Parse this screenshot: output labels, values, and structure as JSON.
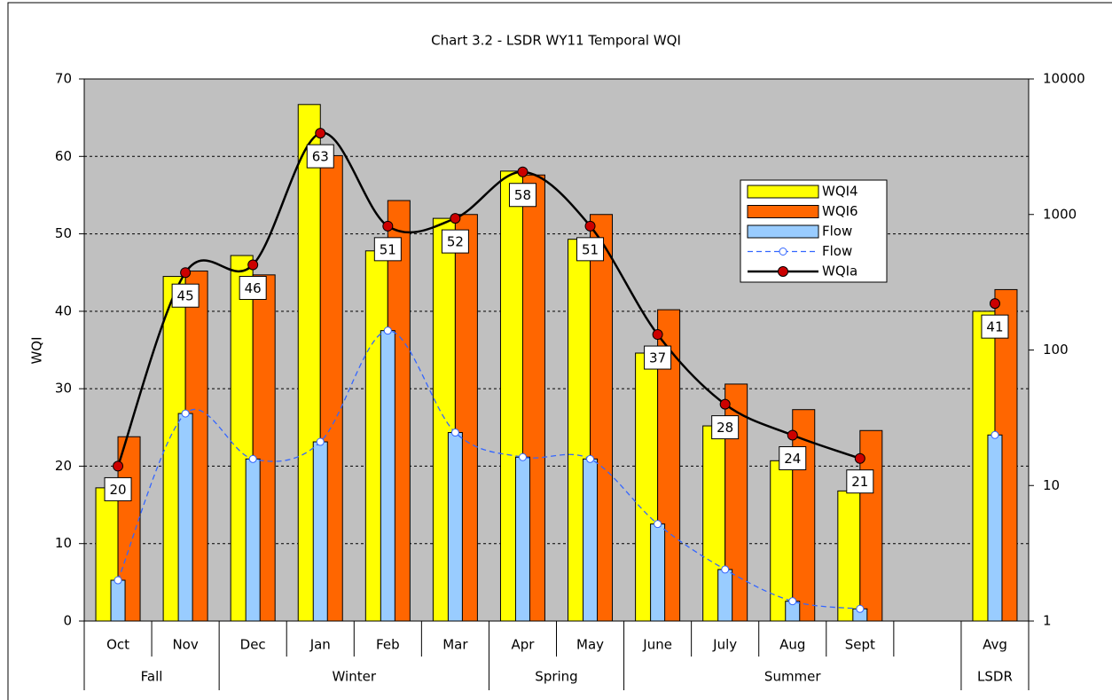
{
  "chart_data": {
    "type": "combo",
    "title": "Chart 3.2 - LSDR WY11 Temporal WQI",
    "y_label": "WQI",
    "categories": [
      "Oct",
      "Nov",
      "Dec",
      "Jan",
      "Feb",
      "Mar",
      "Apr",
      "May",
      "June",
      "July",
      "Aug",
      "Sept",
      null,
      "Avg"
    ],
    "groups": [
      {
        "name": "Fall",
        "span": 2
      },
      {
        "name": "Winter",
        "span": 4
      },
      {
        "name": "Spring",
        "span": 2
      },
      {
        "name": "Summer",
        "span": 5
      },
      {
        "name": "LSDR",
        "span": 1
      }
    ],
    "ylim": [
      0,
      70
    ],
    "yticks": [
      0,
      10,
      20,
      30,
      40,
      50,
      60,
      70
    ],
    "y2lim": [
      1,
      10000
    ],
    "y2ticks": [
      1,
      10,
      100,
      1000,
      10000
    ],
    "y2_log": true,
    "grid": true,
    "legend": "upper right",
    "series": [
      {
        "name": "WQI4",
        "type": "bar",
        "color": "#ffff00",
        "values": [
          17.2,
          44.5,
          47.2,
          66.7,
          47.8,
          52,
          58.1,
          49.3,
          34.6,
          25.2,
          20.7,
          16.8,
          null,
          40
        ]
      },
      {
        "name": "WQI6",
        "type": "bar",
        "color": "#ff6600",
        "values": [
          23.8,
          45.2,
          44.7,
          60.1,
          54.3,
          52.5,
          57.6,
          52.5,
          40.2,
          30.6,
          27.3,
          24.6,
          null,
          42.8
        ]
      },
      {
        "name": "Flow",
        "type": "bar",
        "axis": "y2",
        "color": "#99ccff",
        "values": [
          2.0,
          34,
          15.7,
          21,
          139,
          24.6,
          16.2,
          15.7,
          5.2,
          2.4,
          1.4,
          1.23,
          null,
          23.6
        ]
      },
      {
        "name": "Flow",
        "type": "line",
        "axis": "y2",
        "color": "#3366ff",
        "dashed": true,
        "marker_color": "#ffffff",
        "values": [
          2.0,
          34,
          15.7,
          21,
          139,
          24.6,
          16.2,
          15.7,
          5.2,
          2.4,
          1.4,
          1.23,
          null,
          23.6
        ]
      },
      {
        "name": "WQIa",
        "type": "line",
        "color": "#000000",
        "marker_color": "#cc0000",
        "data_labels": true,
        "values": [
          20,
          45,
          46,
          63,
          51,
          52,
          58,
          51,
          37,
          28,
          24,
          21,
          null,
          41
        ]
      }
    ]
  }
}
